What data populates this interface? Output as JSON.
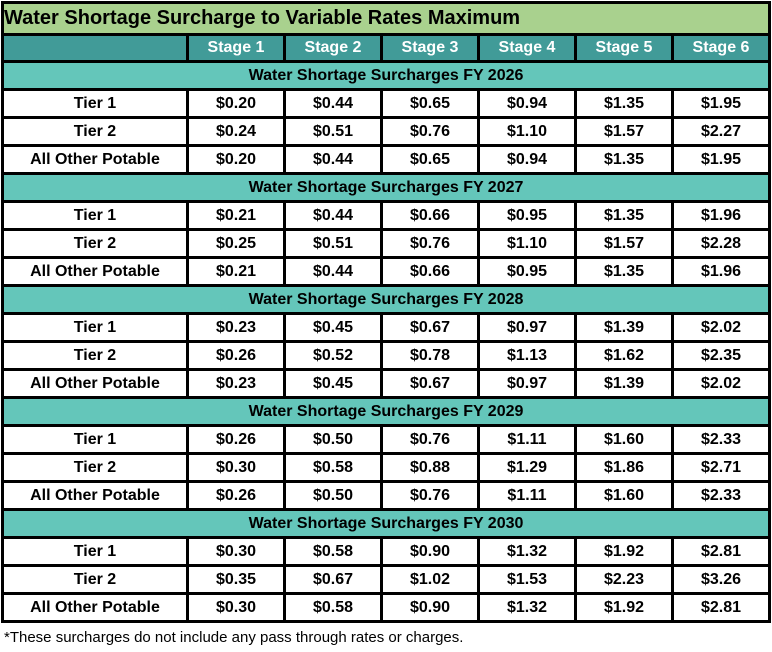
{
  "title": "Water Shortage Surcharge to Variable Rates Maximum",
  "stage_columns": [
    "Stage 1",
    "Stage 2",
    "Stage 3",
    "Stage 4",
    "Stage 5",
    "Stage 6"
  ],
  "sections": [
    {
      "heading": "Water Shortage Surcharges FY 2026",
      "rows": [
        {
          "label": "Tier 1",
          "values": [
            "$0.20",
            "$0.44",
            "$0.65",
            "$0.94",
            "$1.35",
            "$1.95"
          ]
        },
        {
          "label": "Tier 2",
          "values": [
            "$0.24",
            "$0.51",
            "$0.76",
            "$1.10",
            "$1.57",
            "$2.27"
          ]
        },
        {
          "label": "All Other Potable",
          "values": [
            "$0.20",
            "$0.44",
            "$0.65",
            "$0.94",
            "$1.35",
            "$1.95"
          ]
        }
      ]
    },
    {
      "heading": "Water Shortage Surcharges FY 2027",
      "rows": [
        {
          "label": "Tier 1",
          "values": [
            "$0.21",
            "$0.44",
            "$0.66",
            "$0.95",
            "$1.35",
            "$1.96"
          ]
        },
        {
          "label": "Tier 2",
          "values": [
            "$0.25",
            "$0.51",
            "$0.76",
            "$1.10",
            "$1.57",
            "$2.28"
          ]
        },
        {
          "label": "All Other Potable",
          "values": [
            "$0.21",
            "$0.44",
            "$0.66",
            "$0.95",
            "$1.35",
            "$1.96"
          ]
        }
      ]
    },
    {
      "heading": "Water Shortage Surcharges FY 2028",
      "rows": [
        {
          "label": "Tier 1",
          "values": [
            "$0.23",
            "$0.45",
            "$0.67",
            "$0.97",
            "$1.39",
            "$2.02"
          ]
        },
        {
          "label": "Tier 2",
          "values": [
            "$0.26",
            "$0.52",
            "$0.78",
            "$1.13",
            "$1.62",
            "$2.35"
          ]
        },
        {
          "label": "All Other Potable",
          "values": [
            "$0.23",
            "$0.45",
            "$0.67",
            "$0.97",
            "$1.39",
            "$2.02"
          ]
        }
      ]
    },
    {
      "heading": "Water Shortage Surcharges FY 2029",
      "rows": [
        {
          "label": "Tier 1",
          "values": [
            "$0.26",
            "$0.50",
            "$0.76",
            "$1.11",
            "$1.60",
            "$2.33"
          ]
        },
        {
          "label": "Tier 2",
          "values": [
            "$0.30",
            "$0.58",
            "$0.88",
            "$1.29",
            "$1.86",
            "$2.71"
          ]
        },
        {
          "label": "All Other Potable",
          "values": [
            "$0.26",
            "$0.50",
            "$0.76",
            "$1.11",
            "$1.60",
            "$2.33"
          ]
        }
      ]
    },
    {
      "heading": "Water Shortage Surcharges FY 2030",
      "rows": [
        {
          "label": "Tier 1",
          "values": [
            "$0.30",
            "$0.58",
            "$0.90",
            "$1.32",
            "$1.92",
            "$2.81"
          ]
        },
        {
          "label": "Tier 2",
          "values": [
            "$0.35",
            "$0.67",
            "$1.02",
            "$1.53",
            "$2.23",
            "$3.26"
          ]
        },
        {
          "label": "All Other Potable",
          "values": [
            "$0.30",
            "$0.58",
            "$0.90",
            "$1.32",
            "$1.92",
            "$2.81"
          ]
        }
      ]
    }
  ],
  "footnote": "*These surcharges do not include any pass through rates or charges.",
  "colors": {
    "title_bg": "#a9d18e",
    "stage_header_bg": "#419b98",
    "stage_header_text": "#ffffff",
    "section_band_bg": "#64c6ba",
    "row_bg": "#ffffff",
    "border": "#000000",
    "text": "#000000"
  }
}
